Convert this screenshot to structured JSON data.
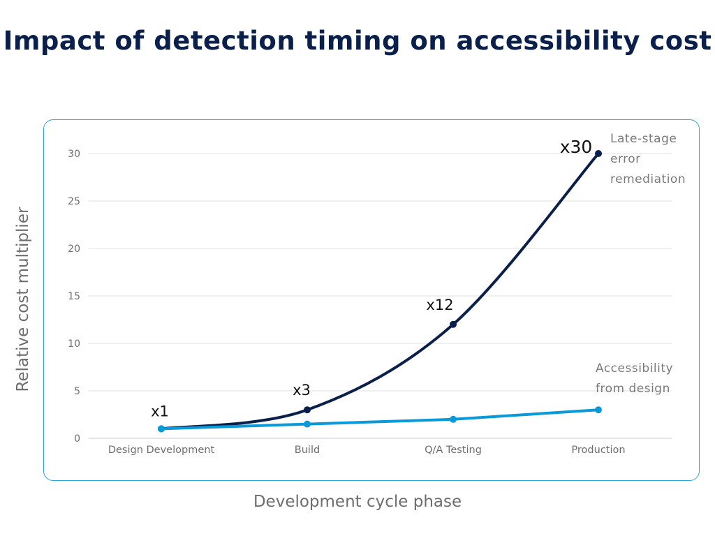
{
  "chart_data": {
    "type": "line",
    "title": "Impact of detection timing on accessibility cost",
    "xlabel": "Development cycle phase",
    "ylabel": "Relative cost multiplier",
    "categories": [
      "Design Development",
      "Build",
      "Q/A Testing",
      "Production"
    ],
    "ylim": [
      0,
      30
    ],
    "yticks": [
      0,
      5,
      10,
      15,
      20,
      25,
      30
    ],
    "grid": true,
    "series": [
      {
        "name": "Late-stage error remediation",
        "name_lines": [
          "Late-stage",
          "error",
          "remediation"
        ],
        "values": [
          1,
          3,
          12,
          30
        ],
        "data_labels": [
          "x1",
          "x3",
          "x12",
          "x30"
        ],
        "color": "#0b1f4b",
        "smooth": true
      },
      {
        "name": "Accessibility from design",
        "name_lines": [
          "Accessibility",
          "from design"
        ],
        "values": [
          1,
          1.5,
          2,
          3
        ],
        "color": "#0a9ad9"
      }
    ],
    "frame_color": "#29a8dc"
  }
}
